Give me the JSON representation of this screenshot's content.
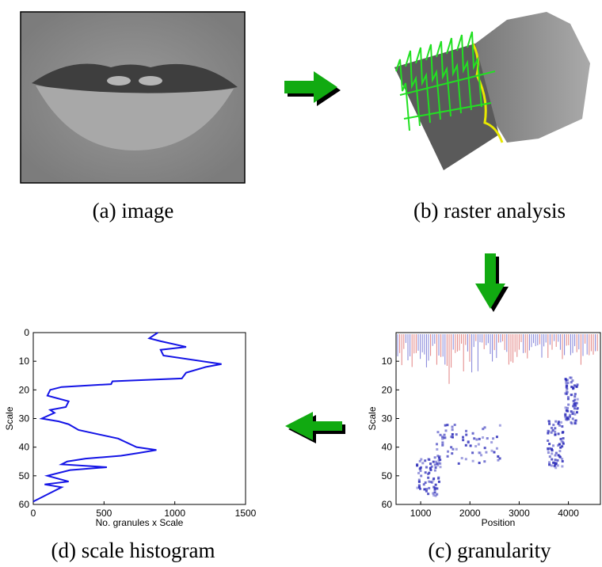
{
  "captions": [
    "(a) image",
    "(b) raster analysis",
    "(c) granularity",
    "(d) scale histogram"
  ],
  "chart_data": [
    {
      "type": "line",
      "xlabel": "No. granules x Scale",
      "ylabel": "Scale",
      "color": "#1414e6",
      "values": [
        880,
        820,
        900,
        1080,
        900,
        920,
        1330,
        1220,
        1080,
        1050,
        560,
        550,
        200,
        120,
        100,
        250,
        230,
        120,
        150,
        60,
        180,
        250,
        320,
        600,
        730,
        870,
        750,
        620,
        370,
        240,
        200,
        520,
        260,
        100,
        250,
        80,
        200,
        120,
        0
      ],
      "y": [
        0,
        2,
        3,
        5,
        6,
        8,
        11,
        12,
        14,
        16,
        17,
        18,
        19,
        20,
        22,
        24,
        26,
        27,
        28,
        30,
        31,
        32,
        34,
        37,
        40,
        41,
        42,
        43,
        44,
        45,
        46,
        47,
        48,
        50,
        52,
        53,
        54,
        56,
        59
      ],
      "xlim": [
        0,
        1500
      ],
      "xticks": [
        0,
        500,
        1000,
        1500
      ],
      "ylim": [
        0,
        60
      ],
      "yticks": [
        0,
        10,
        20,
        30,
        40,
        50,
        60
      ],
      "y_inverted": true
    },
    {
      "type": "heatmap",
      "xlabel": "Position",
      "ylabel": "Scale",
      "xlim": [
        500,
        4650
      ],
      "xticks": [
        1000,
        2000,
        3000,
        4000
      ],
      "ylim": [
        0,
        60
      ],
      "yticks": [
        10,
        20,
        30,
        40,
        50,
        60
      ],
      "y_inverted": true
    }
  ]
}
